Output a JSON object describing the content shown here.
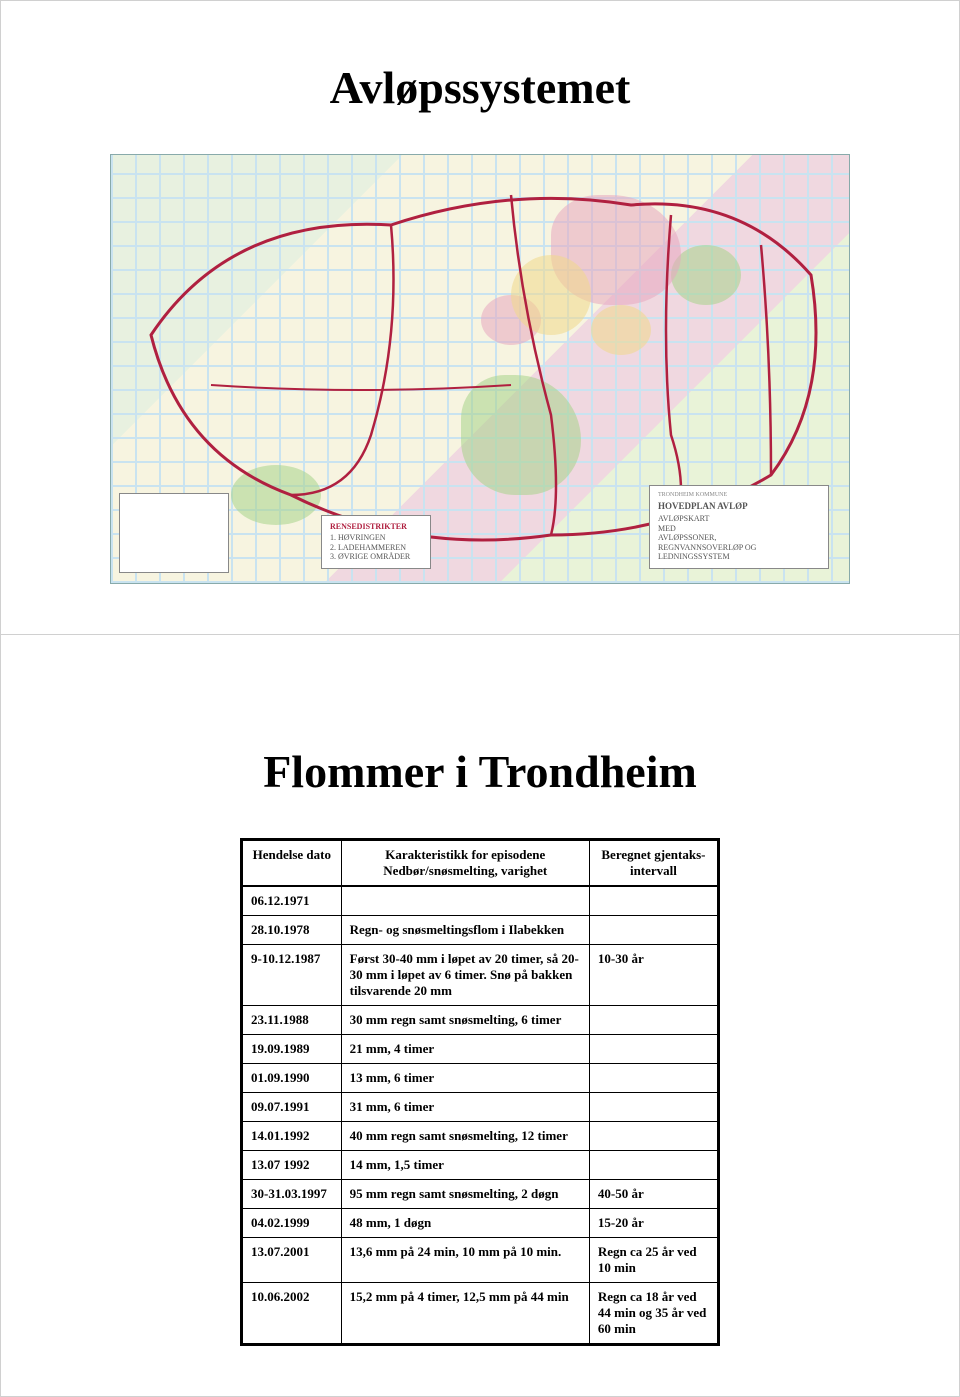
{
  "page1": {
    "title": "Avløpssystemet",
    "map": {
      "legend_left": {
        "heading": "",
        "lines": [
          "",
          "",
          "",
          ""
        ]
      },
      "legend_center": {
        "heading": "RENSEDISTRIKTER",
        "lines": [
          "1. HØVRINGEN",
          "2. LADEHAMMEREN",
          "3. ØVRIGE OMRÅDER"
        ]
      },
      "legend_right": {
        "heading": "HOVEDPLAN AVLØP",
        "sub": "TRONDHEIM KOMMUNE",
        "lines": [
          "AVLØPSKART",
          "MED",
          "AVLØPSSONER,",
          "REGNVANNSOVERLØP OG LEDNINGSSYSTEM"
        ]
      },
      "colors": {
        "grid": "#c9e3f0",
        "border": "#b02040",
        "green": "#a8d48a",
        "yellow": "#f0d88a",
        "pink": "#e8a8c0",
        "beige": "#f5f0d8"
      }
    }
  },
  "page2": {
    "title": "Flommer i Trondheim",
    "table": {
      "headers": {
        "date": "Hendelse dato",
        "char": "Karakteristikk for episodene Nedbør/snøsmelting, varighet",
        "interval": "Beregnet gjentaks-intervall"
      },
      "rows": [
        {
          "date": "06.12.1971",
          "char": "",
          "interval": ""
        },
        {
          "date": "28.10.1978",
          "char": "Regn- og snøsmeltingsflom i Ilabekken",
          "interval": ""
        },
        {
          "date": "9-10.12.1987",
          "char": "Først 30-40 mm i løpet av 20 timer, så 20-30 mm i løpet av 6 timer. Snø på bakken tilsvarende 20 mm",
          "interval": "10-30 år"
        },
        {
          "date": "23.11.1988",
          "char": "30 mm regn samt snøsmelting, 6 timer",
          "interval": ""
        },
        {
          "date": "19.09.1989",
          "char": "21 mm, 4 timer",
          "interval": ""
        },
        {
          "date": "01.09.1990",
          "char": "13 mm, 6 timer",
          "interval": ""
        },
        {
          "date": "09.07.1991",
          "char": "31 mm, 6 timer",
          "interval": ""
        },
        {
          "date": "14.01.1992",
          "char": "40 mm regn samt snøsmelting, 12 timer",
          "interval": ""
        },
        {
          "date": "13.07 1992",
          "char": "14 mm, 1,5 timer",
          "interval": ""
        },
        {
          "date": "30-31.03.1997",
          "char": "95 mm regn samt snøsmelting, 2 døgn",
          "interval": "40-50 år"
        },
        {
          "date": "04.02.1999",
          "char": "48 mm, 1 døgn",
          "interval": "15-20 år"
        },
        {
          "date": "13.07.2001",
          "char": "13,6 mm på 24 min, 10 mm på 10 min.",
          "interval": "Regn ca 25 år ved 10 min"
        },
        {
          "date": "10.06.2002",
          "char": "15,2 mm på 4 timer, 12,5 mm på 44 min",
          "interval": "Regn ca 18 år ved 44 min og 35 år ved 60 min"
        }
      ]
    }
  }
}
